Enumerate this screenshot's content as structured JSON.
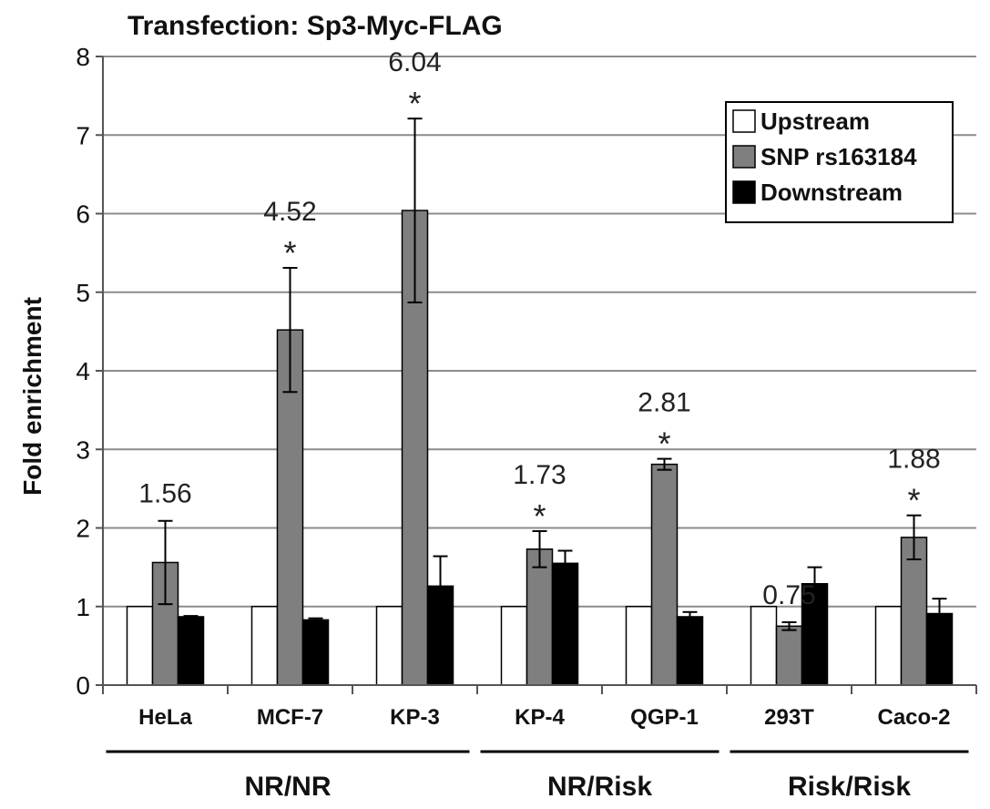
{
  "chart_data": {
    "type": "bar",
    "title": "Transfection: Sp3-Myc-FLAG",
    "xlabel": "",
    "ylabel": "Fold enrichment",
    "ylim": [
      0,
      8
    ],
    "yticks": [
      "0",
      "1",
      "2",
      "3",
      "4",
      "5",
      "6",
      "7",
      "8"
    ],
    "grid": true,
    "legend_position": "top-right",
    "categories": [
      "HeLa",
      "MCF-7",
      "KP-3",
      "KP-4",
      "QGP-1",
      "293T",
      "Caco-2"
    ],
    "series": [
      {
        "name": "Upstream",
        "color": "#ffffff",
        "values": [
          1,
          1,
          1,
          1,
          1,
          1,
          1
        ],
        "errors": [
          0,
          0,
          0,
          0,
          0,
          0,
          0
        ]
      },
      {
        "name": "SNP rs163184",
        "color": "#7f7f7f",
        "values": [
          1.56,
          4.52,
          6.04,
          1.73,
          2.81,
          0.75,
          1.88
        ],
        "errors": [
          0.53,
          0.79,
          1.17,
          0.23,
          0.07,
          0.05,
          0.28
        ]
      },
      {
        "name": "Downstream",
        "color": "#000000",
        "values": [
          0.87,
          0.83,
          1.26,
          1.55,
          0.87,
          1.29,
          0.91
        ],
        "errors": [
          0.01,
          0.02,
          0.38,
          0.16,
          0.06,
          0.21,
          0.19
        ]
      }
    ],
    "value_labels": [
      "1.56",
      "4.52",
      "6.04",
      "1.73",
      "2.81",
      "0.75",
      "1.88"
    ],
    "significant": [
      false,
      true,
      true,
      true,
      true,
      false,
      true
    ],
    "significance_marker": "*",
    "groups": [
      {
        "label": "NR/NR",
        "categories": [
          "HeLa",
          "MCF-7",
          "KP-3"
        ]
      },
      {
        "label": "NR/Risk",
        "categories": [
          "KP-4",
          "QGP-1"
        ]
      },
      {
        "label": "Risk/Risk",
        "categories": [
          "293T",
          "Caco-2"
        ]
      }
    ]
  }
}
